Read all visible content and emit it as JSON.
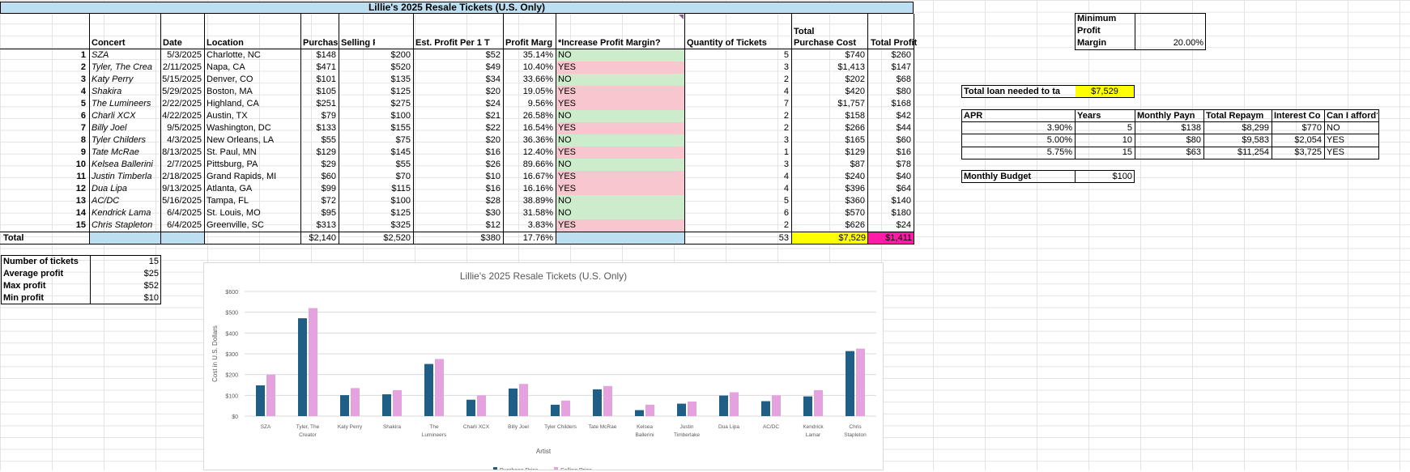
{
  "sheet_title": "Lillie's 2025 Resale Tickets (U.S. Only)",
  "headers": {
    "concert": "Concert",
    "date": "Date",
    "location": "Location",
    "purchase_price": "Purchase Pr",
    "selling_price": "Selling P",
    "est_profit": "Est. Profit Per 1 T",
    "profit_margin": "Profit Marg",
    "increase_margin": "*Increase Profit Margin?",
    "quantity": "Quantity of Tickets",
    "total_purchase_cost_1": "Total",
    "total_purchase_cost_2": "Purchase Cost",
    "total_profit": "Total Profit"
  },
  "rows": [
    {
      "n": "1",
      "concert": "SZA",
      "date": "5/3/2025",
      "location": "Charlotte, NC",
      "pp": "$148",
      "sp": "$200",
      "ep": "$52",
      "pm": "35.14%",
      "inc": "NO",
      "qty": "5",
      "tpc": "$740",
      "tp": "$260"
    },
    {
      "n": "2",
      "concert": "Tyler, The Crea",
      "date": "2/11/2025",
      "location": "Napa, CA",
      "pp": "$471",
      "sp": "$520",
      "ep": "$49",
      "pm": "10.40%",
      "inc": "YES",
      "qty": "3",
      "tpc": "$1,413",
      "tp": "$147"
    },
    {
      "n": "3",
      "concert": "Katy Perry",
      "date": "5/15/2025",
      "location": "Denver, CO",
      "pp": "$101",
      "sp": "$135",
      "ep": "$34",
      "pm": "33.66%",
      "inc": "NO",
      "qty": "2",
      "tpc": "$202",
      "tp": "$68"
    },
    {
      "n": "4",
      "concert": "Shakira",
      "date": "5/29/2025",
      "location": "Boston, MA",
      "pp": "$105",
      "sp": "$125",
      "ep": "$20",
      "pm": "19.05%",
      "inc": "YES",
      "qty": "4",
      "tpc": "$420",
      "tp": "$80"
    },
    {
      "n": "5",
      "concert": "The Lumineers",
      "date": "2/22/2025",
      "location": "Highland, CA",
      "pp": "$251",
      "sp": "$275",
      "ep": "$24",
      "pm": "9.56%",
      "inc": "YES",
      "qty": "7",
      "tpc": "$1,757",
      "tp": "$168"
    },
    {
      "n": "6",
      "concert": "Charli XCX",
      "date": "4/22/2025",
      "location": "Austin, TX",
      "pp": "$79",
      "sp": "$100",
      "ep": "$21",
      "pm": "26.58%",
      "inc": "NO",
      "qty": "2",
      "tpc": "$158",
      "tp": "$42"
    },
    {
      "n": "7",
      "concert": "Billy Joel",
      "date": "9/5/2025",
      "location": "Washington, DC",
      "pp": "$133",
      "sp": "$155",
      "ep": "$22",
      "pm": "16.54%",
      "inc": "YES",
      "qty": "2",
      "tpc": "$266",
      "tp": "$44"
    },
    {
      "n": "8",
      "concert": "Tyler Childers",
      "date": "4/3/2025",
      "location": "New Orleans, LA",
      "pp": "$55",
      "sp": "$75",
      "ep": "$20",
      "pm": "36.36%",
      "inc": "NO",
      "qty": "3",
      "tpc": "$165",
      "tp": "$60"
    },
    {
      "n": "9",
      "concert": "Tate McRae",
      "date": "8/13/2025",
      "location": "St. Paul, MN",
      "pp": "$129",
      "sp": "$145",
      "ep": "$16",
      "pm": "12.40%",
      "inc": "YES",
      "qty": "1",
      "tpc": "$129",
      "tp": "$16"
    },
    {
      "n": "10",
      "concert": "Kelsea Ballerini",
      "date": "2/7/2025",
      "location": "Pittsburg, PA",
      "pp": "$29",
      "sp": "$55",
      "ep": "$26",
      "pm": "89.66%",
      "inc": "NO",
      "qty": "3",
      "tpc": "$87",
      "tp": "$78"
    },
    {
      "n": "11",
      "concert": "Justin Timberla",
      "date": "2/18/2025",
      "location": "Grand Rapids, MI",
      "pp": "$60",
      "sp": "$70",
      "ep": "$10",
      "pm": "16.67%",
      "inc": "YES",
      "qty": "4",
      "tpc": "$240",
      "tp": "$40"
    },
    {
      "n": "12",
      "concert": "Dua Lipa",
      "date": "9/13/2025",
      "location": "Atlanta, GA",
      "pp": "$99",
      "sp": "$115",
      "ep": "$16",
      "pm": "16.16%",
      "inc": "YES",
      "qty": "4",
      "tpc": "$396",
      "tp": "$64"
    },
    {
      "n": "13",
      "concert": "AC/DC",
      "date": "5/16/2025",
      "location": "Tampa, FL",
      "pp": "$72",
      "sp": "$100",
      "ep": "$28",
      "pm": "38.89%",
      "inc": "NO",
      "qty": "5",
      "tpc": "$360",
      "tp": "$140"
    },
    {
      "n": "14",
      "concert": "Kendrick Lama",
      "date": "6/4/2025",
      "location": "St. Louis, MO",
      "pp": "$95",
      "sp": "$125",
      "ep": "$30",
      "pm": "31.58%",
      "inc": "NO",
      "qty": "6",
      "tpc": "$570",
      "tp": "$180"
    },
    {
      "n": "15",
      "concert": "Chris Stapleton",
      "date": "6/4/2025",
      "location": "Greenville, SC",
      "pp": "$313",
      "sp": "$325",
      "ep": "$12",
      "pm": "3.83%",
      "inc": "YES",
      "qty": "2",
      "tpc": "$626",
      "tp": "$24"
    }
  ],
  "total_row": {
    "label": "Total",
    "pp": "$2,140",
    "sp": "$2,520",
    "ep": "$380",
    "pm": "17.76%",
    "qty": "53",
    "tpc": "$7,529",
    "tp": "$1,411"
  },
  "stats": [
    {
      "label": "Number of tickets",
      "value": "15"
    },
    {
      "label": "Average profit",
      "value": "$25"
    },
    {
      "label": "Max profit",
      "value": "$52"
    },
    {
      "label": "Min profit",
      "value": "$10"
    }
  ],
  "min_margin": {
    "label_1": "Minimum",
    "label_2": "Profit",
    "label_3": "Margin",
    "value": "20.00%"
  },
  "loan": {
    "label": "Total loan needed to ta",
    "value": "$7,529"
  },
  "loan_table": {
    "headers": [
      "APR",
      "Years",
      "Monthly Payn",
      "Total Repaym",
      "Interest Co",
      "Can I afford?"
    ],
    "rows": [
      [
        "3.90%",
        "5",
        "$138",
        "$8,299",
        "$770",
        "NO"
      ],
      [
        "5.00%",
        "10",
        "$80",
        "$9,583",
        "$2,054",
        "YES"
      ],
      [
        "5.75%",
        "15",
        "$63",
        "$11,254",
        "$3,725",
        "YES"
      ]
    ]
  },
  "budget": {
    "label": "Monthly Budget",
    "value": "$100"
  },
  "colors": {
    "purchase": "#1f5f86",
    "selling": "#e4a3df",
    "green": "#cdeccb",
    "pink": "#f8c6cf",
    "blue": "#bddff2",
    "yellow": "#ffff00",
    "magenta": "#ff1aa8"
  },
  "chart_data": {
    "type": "bar",
    "title": "Lillie's 2025 Resale Tickets (U.S. Only)",
    "xlabel": "Artist",
    "ylabel": "Cost in U.S. Dollars",
    "ylim": [
      0,
      600
    ],
    "yticks": [
      "$0",
      "$100",
      "$200",
      "$300",
      "$400",
      "$500",
      "$600"
    ],
    "categories": [
      [
        "SZA"
      ],
      [
        "Tyler, The",
        "Creator"
      ],
      [
        "Katy Perry"
      ],
      [
        "Shakira"
      ],
      [
        "The",
        "Lumineers"
      ],
      [
        "Charli XCX"
      ],
      [
        "Billy Joel"
      ],
      [
        "Tyler Childers"
      ],
      [
        "Tate McRae"
      ],
      [
        "Kelsea",
        "Ballerini"
      ],
      [
        "Justin",
        "Timberlake"
      ],
      [
        "Dua Lipa"
      ],
      [
        "AC/DC"
      ],
      [
        "Kendrick",
        "Lamar"
      ],
      [
        "Chris",
        "Stapleton"
      ]
    ],
    "series": [
      {
        "name": "Purchase Price",
        "values": [
          148,
          471,
          101,
          105,
          251,
          79,
          133,
          55,
          129,
          29,
          60,
          99,
          72,
          95,
          313
        ]
      },
      {
        "name": "Selling Price",
        "values": [
          200,
          520,
          135,
          125,
          275,
          100,
          155,
          75,
          145,
          55,
          70,
          115,
          100,
          125,
          325
        ]
      }
    ],
    "legend": "bottom",
    "grid": true
  }
}
